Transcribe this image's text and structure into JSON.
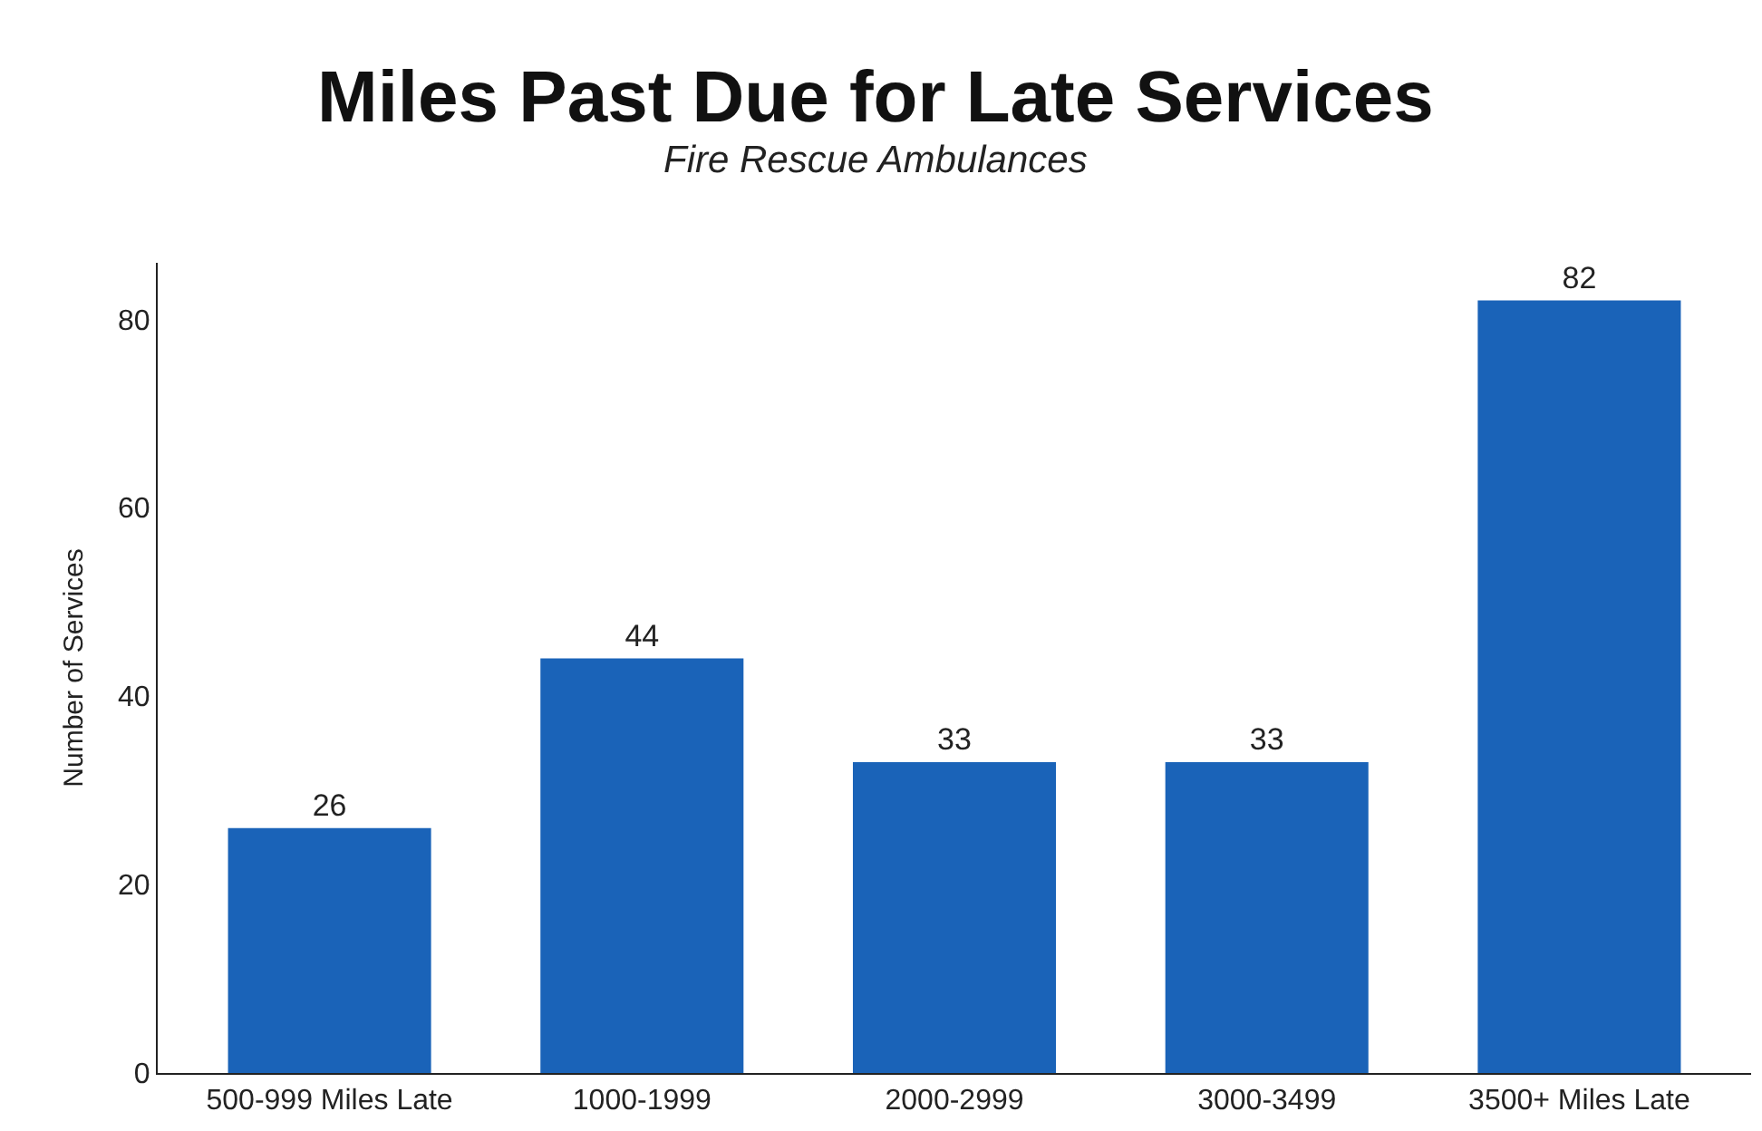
{
  "chart_data": {
    "type": "bar",
    "title": "Miles Past Due for Late Services",
    "subtitle": "Fire Rescue Ambulances",
    "ylabel": "Number of Services",
    "categories": [
      "500-999 Miles Late",
      "1000-1999",
      "2000-2999",
      "3000-3499",
      "3500+ Miles Late"
    ],
    "values": [
      26,
      44,
      33,
      33,
      82
    ],
    "color": "#1a63b8",
    "data_labels": true,
    "ylim": [
      0,
      86
    ],
    "yticks": [
      0,
      20,
      40,
      60,
      80
    ]
  }
}
